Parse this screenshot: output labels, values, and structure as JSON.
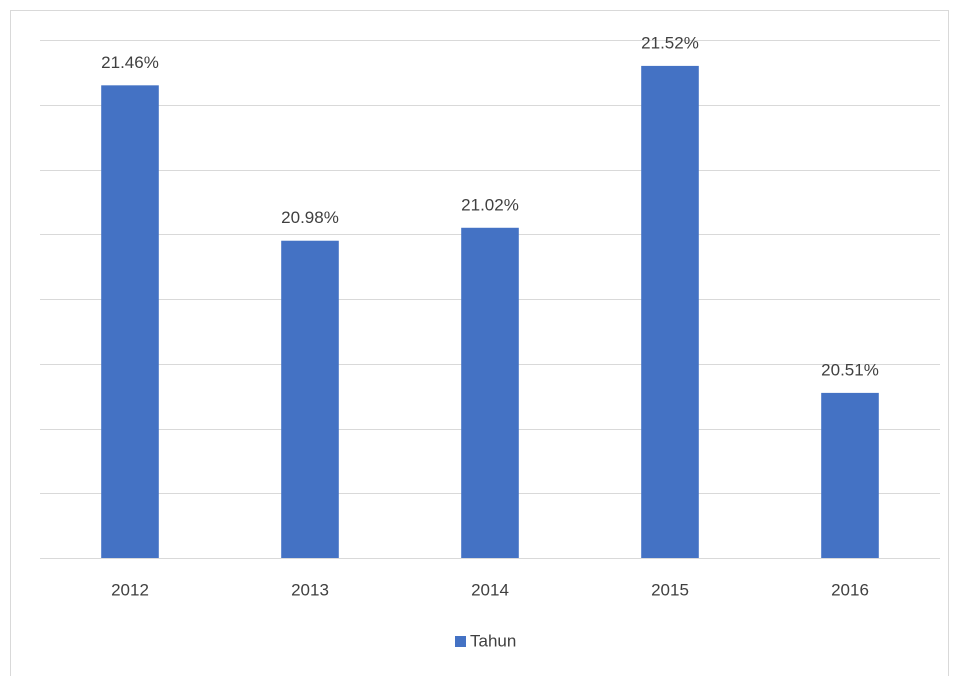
{
  "chart_data": {
    "type": "bar",
    "categories": [
      "2012",
      "2013",
      "2014",
      "2015",
      "2016"
    ],
    "series": [
      {
        "name": "Tahun",
        "color": "#4472c4",
        "values": [
          21.46,
          20.98,
          21.02,
          21.52,
          20.51
        ],
        "value_labels": [
          "21.46%",
          "20.98%",
          "21.02%",
          "21.52%",
          "20.51%"
        ]
      }
    ],
    "ylim": [
      20,
      21.6
    ],
    "yticks": [
      20,
      20.2,
      20.4,
      20.6,
      20.8,
      21,
      21.2,
      21.4,
      21.6
    ],
    "grid": true,
    "legend": "bottom"
  }
}
